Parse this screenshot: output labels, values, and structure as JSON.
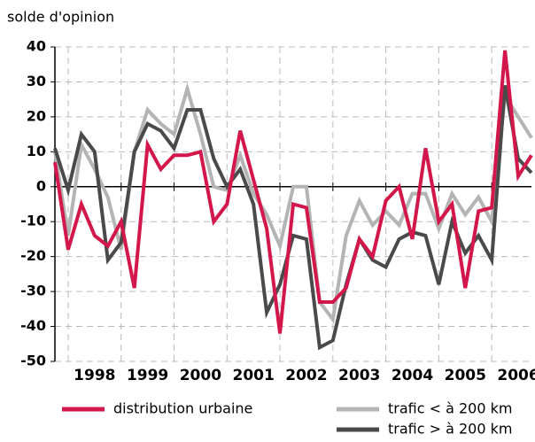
{
  "chart_data": {
    "type": "line",
    "y_label": "solde d'opinion",
    "x": [
      1997.75,
      1998,
      1998.25,
      1998.5,
      1998.75,
      1999,
      1999.25,
      1999.5,
      1999.75,
      2000,
      2000.25,
      2000.5,
      2000.75,
      2001,
      2001.25,
      2001.5,
      2001.75,
      2002,
      2002.25,
      2002.5,
      2002.75,
      2003,
      2003.25,
      2003.5,
      2003.75,
      2004,
      2004.25,
      2004.5,
      2004.75,
      2005,
      2005.25,
      2005.5,
      2005.75,
      2006,
      2006.25,
      2006.5,
      2006.75
    ],
    "xlim": [
      1997.75,
      2006.75
    ],
    "xticks": [
      {
        "value": 1998,
        "label": "1998"
      },
      {
        "value": 1999,
        "label": "1999"
      },
      {
        "value": 2000,
        "label": "2000"
      },
      {
        "value": 2001,
        "label": "2001"
      },
      {
        "value": 2002,
        "label": "2002"
      },
      {
        "value": 2003,
        "label": "2003"
      },
      {
        "value": 2004,
        "label": "2004"
      },
      {
        "value": 2005,
        "label": "2005"
      },
      {
        "value": 2006,
        "label": "2006"
      }
    ],
    "ylim": [
      -50,
      40
    ],
    "yticks": [
      -50,
      -40,
      -30,
      -20,
      -10,
      0,
      10,
      20,
      30,
      40
    ],
    "grid": true,
    "series": [
      {
        "name": "trafic < à 200 km",
        "color": "#b4b4b4",
        "values": [
          10,
          -14,
          12,
          5,
          -3,
          -18,
          10,
          22,
          18,
          15,
          28,
          15,
          0,
          -1,
          9,
          -2,
          -8,
          -17,
          0,
          0,
          -33,
          -38,
          -14,
          -4,
          -11,
          -7,
          -11,
          -2,
          -2,
          -12,
          -2,
          -8,
          -3,
          -10,
          26,
          20,
          14
        ]
      },
      {
        "name": "trafic > à 200 km",
        "color": "#4a4a4a",
        "values": [
          11,
          -1,
          15,
          10,
          -21,
          -16,
          10,
          18,
          16,
          11,
          22,
          22,
          8,
          0,
          5,
          -5,
          -36,
          -28,
          -14,
          -15,
          -46,
          -44,
          -28,
          -15,
          -21,
          -23,
          -15,
          -13,
          -14,
          -28,
          -10,
          -19,
          -14,
          -21,
          29,
          8,
          4
        ]
      },
      {
        "name": "distribution urbaine",
        "color": "#d3174a",
        "values": [
          7,
          -18,
          -5,
          -14,
          -17,
          -10,
          -29,
          12,
          5,
          9,
          9,
          10,
          -10,
          -5,
          16,
          2,
          -12,
          -42,
          -5,
          -6,
          -33,
          -33,
          -29,
          -15,
          -20,
          -4,
          0,
          -15,
          11,
          -10,
          -5,
          -29,
          -7,
          -6,
          39,
          3,
          9
        ]
      }
    ]
  }
}
